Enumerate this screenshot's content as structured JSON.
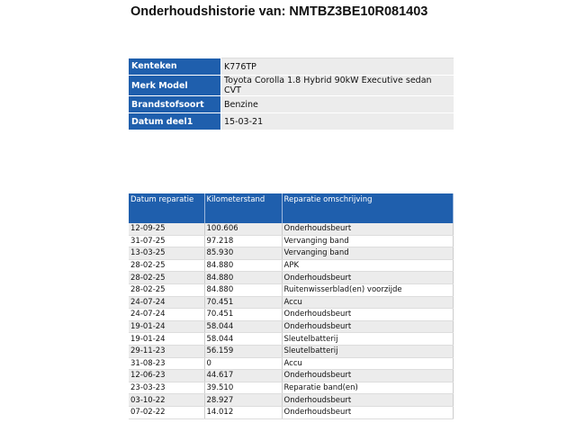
{
  "title": "Onderhoudshistorie van: NMTBZ3BE10R081403",
  "info": [
    {
      "label": "Kenteken",
      "value": "K776TP"
    },
    {
      "label": "Merk Model",
      "value": "Toyota Corolla 1.8 Hybrid 90kW Executive sedan CVT"
    },
    {
      "label": "Brandstofsoort",
      "value": "Benzine"
    },
    {
      "label": "Datum deel1",
      "value": "15-03-21"
    }
  ],
  "history": {
    "headers": [
      "Datum reparatie",
      "Kilometerstand",
      "Reparatie omschrijving"
    ],
    "rows": [
      [
        "12-09-25",
        "100.606",
        "Onderhoudsbeurt"
      ],
      [
        "31-07-25",
        "97.218",
        "Vervanging band"
      ],
      [
        "13-03-25",
        "85.930",
        "Vervanging band"
      ],
      [
        "28-02-25",
        "84.880",
        "APK"
      ],
      [
        "28-02-25",
        "84.880",
        "Onderhoudsbeurt"
      ],
      [
        "28-02-25",
        "84.880",
        "Ruitenwisserblad(en) voorzijde"
      ],
      [
        "24-07-24",
        "70.451",
        "Accu"
      ],
      [
        "24-07-24",
        "70.451",
        "Onderhoudsbeurt"
      ],
      [
        "19-01-24",
        "58.044",
        "Onderhoudsbeurt"
      ],
      [
        "19-01-24",
        "58.044",
        "Sleutelbatterij"
      ],
      [
        "29-11-23",
        "56.159",
        "Sleutelbatterij"
      ],
      [
        "31-08-23",
        "0",
        "Accu"
      ],
      [
        "12-06-23",
        "44.617",
        "Onderhoudsbeurt"
      ],
      [
        "23-03-23",
        "39.510",
        "Reparatie band(en)"
      ],
      [
        "03-10-22",
        "28.927",
        "Onderhoudsbeurt"
      ],
      [
        "07-02-22",
        "14.012",
        "Onderhoudsbeurt"
      ]
    ]
  },
  "colors": {
    "header_blue": "#1f5fad",
    "row_gray": "#ececec"
  }
}
